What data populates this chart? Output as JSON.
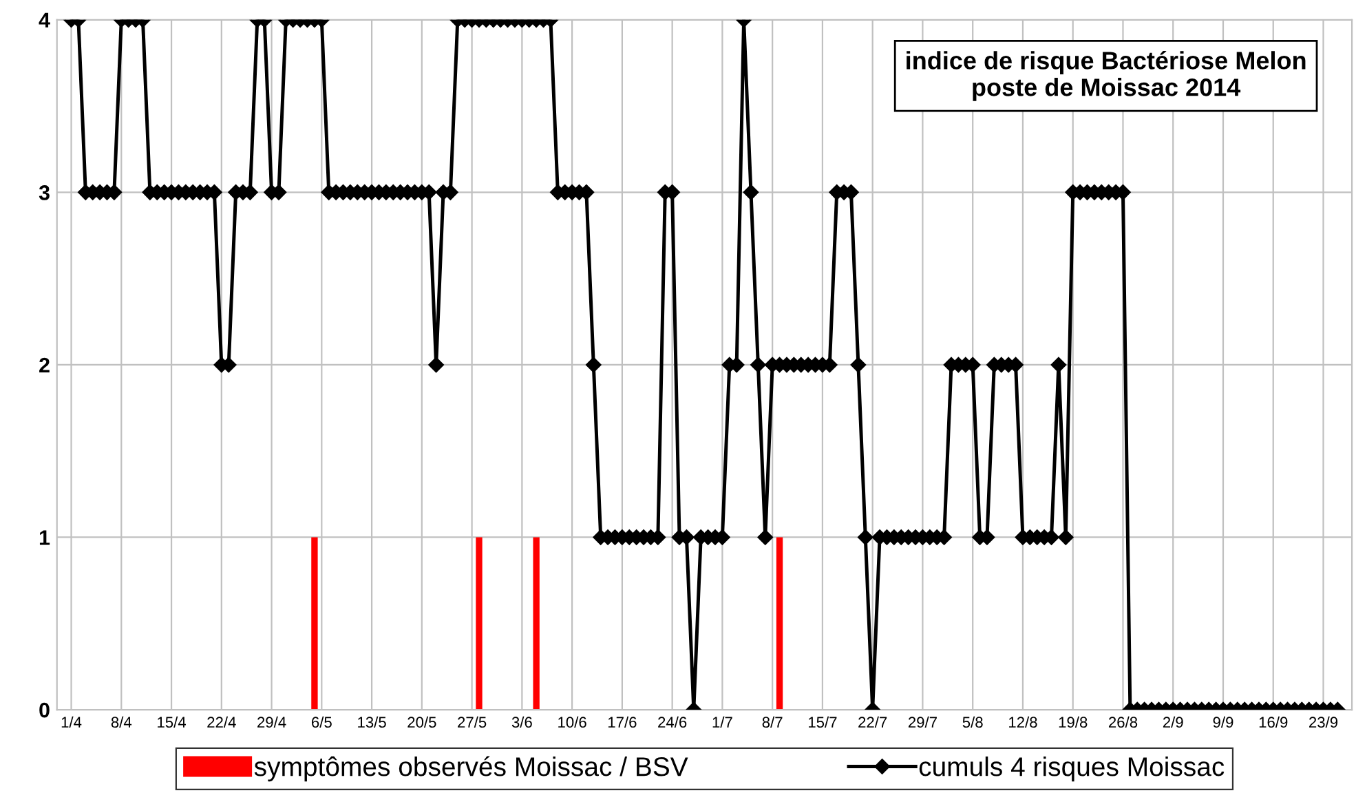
{
  "chart_data": {
    "type": "line",
    "title": "indice de risque Bactériose Melon\nposte de Moissac 2014",
    "xlim": [
      "2014-03-30",
      "2014-09-27"
    ],
    "ylim": [
      0,
      4
    ],
    "yticks": [
      0,
      1,
      2,
      3,
      4
    ],
    "xticks": [
      {
        "value": "2014-04-01",
        "label": "1/4"
      },
      {
        "value": "2014-04-08",
        "label": "8/4"
      },
      {
        "value": "2014-04-15",
        "label": "15/4"
      },
      {
        "value": "2014-04-22",
        "label": "22/4"
      },
      {
        "value": "2014-04-29",
        "label": "29/4"
      },
      {
        "value": "2014-05-06",
        "label": "6/5"
      },
      {
        "value": "2014-05-13",
        "label": "13/5"
      },
      {
        "value": "2014-05-20",
        "label": "20/5"
      },
      {
        "value": "2014-05-27",
        "label": "27/5"
      },
      {
        "value": "2014-06-03",
        "label": "3/6"
      },
      {
        "value": "2014-06-10",
        "label": "10/6"
      },
      {
        "value": "2014-06-17",
        "label": "17/6"
      },
      {
        "value": "2014-06-24",
        "label": "24/6"
      },
      {
        "value": "2014-07-01",
        "label": "1/7"
      },
      {
        "value": "2014-07-08",
        "label": "8/7"
      },
      {
        "value": "2014-07-15",
        "label": "15/7"
      },
      {
        "value": "2014-07-22",
        "label": "22/7"
      },
      {
        "value": "2014-07-29",
        "label": "29/7"
      },
      {
        "value": "2014-08-05",
        "label": "5/8"
      },
      {
        "value": "2014-08-12",
        "label": "12/8"
      },
      {
        "value": "2014-08-19",
        "label": "19/8"
      },
      {
        "value": "2014-08-26",
        "label": "26/8"
      },
      {
        "value": "2014-09-02",
        "label": "2/9"
      },
      {
        "value": "2014-09-09",
        "label": "9/9"
      },
      {
        "value": "2014-09-16",
        "label": "16/9"
      },
      {
        "value": "2014-09-23",
        "label": "23/9"
      }
    ],
    "grid": true,
    "legend": "bottom",
    "series": [
      {
        "name": "symptômes observés Moissac / BSV",
        "type": "bar",
        "color": "#ff0000",
        "x": [
          "2014-05-05",
          "2014-05-28",
          "2014-06-05",
          "2014-07-09"
        ],
        "values": [
          1,
          1,
          1,
          1
        ]
      },
      {
        "name": "cumuls 4 risques Moissac",
        "color": "#000000",
        "marker": "diamond",
        "x": [
          "2014-04-01",
          "2014-04-02",
          "2014-04-03",
          "2014-04-04",
          "2014-04-05",
          "2014-04-06",
          "2014-04-07",
          "2014-04-08",
          "2014-04-09",
          "2014-04-10",
          "2014-04-11",
          "2014-04-12",
          "2014-04-13",
          "2014-04-14",
          "2014-04-15",
          "2014-04-16",
          "2014-04-17",
          "2014-04-18",
          "2014-04-19",
          "2014-04-20",
          "2014-04-21",
          "2014-04-22",
          "2014-04-23",
          "2014-04-24",
          "2014-04-25",
          "2014-04-26",
          "2014-04-27",
          "2014-04-28",
          "2014-04-29",
          "2014-04-30",
          "2014-05-01",
          "2014-05-02",
          "2014-05-03",
          "2014-05-04",
          "2014-05-05",
          "2014-05-06",
          "2014-05-07",
          "2014-05-08",
          "2014-05-09",
          "2014-05-10",
          "2014-05-11",
          "2014-05-12",
          "2014-05-13",
          "2014-05-14",
          "2014-05-15",
          "2014-05-16",
          "2014-05-17",
          "2014-05-18",
          "2014-05-19",
          "2014-05-20",
          "2014-05-21",
          "2014-05-22",
          "2014-05-23",
          "2014-05-24",
          "2014-05-25",
          "2014-05-26",
          "2014-05-27",
          "2014-05-28",
          "2014-05-29",
          "2014-05-30",
          "2014-05-31",
          "2014-06-01",
          "2014-06-02",
          "2014-06-03",
          "2014-06-04",
          "2014-06-05",
          "2014-06-06",
          "2014-06-07",
          "2014-06-08",
          "2014-06-09",
          "2014-06-10",
          "2014-06-11",
          "2014-06-12",
          "2014-06-13",
          "2014-06-14",
          "2014-06-15",
          "2014-06-16",
          "2014-06-17",
          "2014-06-18",
          "2014-06-19",
          "2014-06-20",
          "2014-06-21",
          "2014-06-22",
          "2014-06-23",
          "2014-06-24",
          "2014-06-25",
          "2014-06-26",
          "2014-06-27",
          "2014-06-28",
          "2014-06-29",
          "2014-06-30",
          "2014-07-01",
          "2014-07-02",
          "2014-07-03",
          "2014-07-04",
          "2014-07-05",
          "2014-07-06",
          "2014-07-07",
          "2014-07-08",
          "2014-07-09",
          "2014-07-10",
          "2014-07-11",
          "2014-07-12",
          "2014-07-13",
          "2014-07-14",
          "2014-07-15",
          "2014-07-16",
          "2014-07-17",
          "2014-07-18",
          "2014-07-19",
          "2014-07-20",
          "2014-07-21",
          "2014-07-22",
          "2014-07-23",
          "2014-07-24",
          "2014-07-25",
          "2014-07-26",
          "2014-07-27",
          "2014-07-28",
          "2014-07-29",
          "2014-07-30",
          "2014-07-31",
          "2014-08-01",
          "2014-08-02",
          "2014-08-03",
          "2014-08-04",
          "2014-08-05",
          "2014-08-06",
          "2014-08-07",
          "2014-08-08",
          "2014-08-09",
          "2014-08-10",
          "2014-08-11",
          "2014-08-12",
          "2014-08-13",
          "2014-08-14",
          "2014-08-15",
          "2014-08-16",
          "2014-08-17",
          "2014-08-18",
          "2014-08-19",
          "2014-08-20",
          "2014-08-21",
          "2014-08-22",
          "2014-08-23",
          "2014-08-24",
          "2014-08-25",
          "2014-08-26",
          "2014-08-27",
          "2014-08-28",
          "2014-08-29",
          "2014-08-30",
          "2014-08-31",
          "2014-09-01",
          "2014-09-02",
          "2014-09-03",
          "2014-09-04",
          "2014-09-05",
          "2014-09-06",
          "2014-09-07",
          "2014-09-08",
          "2014-09-09",
          "2014-09-10",
          "2014-09-11",
          "2014-09-12",
          "2014-09-13",
          "2014-09-14",
          "2014-09-15",
          "2014-09-16",
          "2014-09-17",
          "2014-09-18",
          "2014-09-19",
          "2014-09-20",
          "2014-09-21",
          "2014-09-22",
          "2014-09-23",
          "2014-09-24",
          "2014-09-25"
        ],
        "values": [
          4,
          4,
          3,
          3,
          3,
          3,
          3,
          4,
          4,
          4,
          4,
          3,
          3,
          3,
          3,
          3,
          3,
          3,
          3,
          3,
          3,
          2,
          2,
          3,
          3,
          3,
          4,
          4,
          3,
          3,
          4,
          4,
          4,
          4,
          4,
          4,
          3,
          3,
          3,
          3,
          3,
          3,
          3,
          3,
          3,
          3,
          3,
          3,
          3,
          3,
          3,
          2,
          3,
          3,
          4,
          4,
          4,
          4,
          4,
          4,
          4,
          4,
          4,
          4,
          4,
          4,
          4,
          4,
          3,
          3,
          3,
          3,
          3,
          2,
          1,
          1,
          1,
          1,
          1,
          1,
          1,
          1,
          1,
          3,
          3,
          1,
          1,
          0,
          1,
          1,
          1,
          1,
          2,
          2,
          4,
          3,
          2,
          1,
          2,
          2,
          2,
          2,
          2,
          2,
          2,
          2,
          2,
          3,
          3,
          3,
          2,
          1,
          0,
          1,
          1,
          1,
          1,
          1,
          1,
          1,
          1,
          1,
          1,
          2,
          2,
          2,
          2,
          1,
          1,
          2,
          2,
          2,
          2,
          1,
          1,
          1,
          1,
          1,
          2,
          1,
          3,
          3,
          3,
          3,
          3,
          3,
          3,
          3,
          0,
          0,
          0,
          0,
          0,
          0,
          0,
          0,
          0,
          0,
          0,
          0,
          0,
          0,
          0,
          0,
          0,
          0,
          0,
          0,
          0,
          0,
          0,
          0,
          0,
          0,
          0,
          0,
          0,
          0
        ]
      }
    ]
  }
}
